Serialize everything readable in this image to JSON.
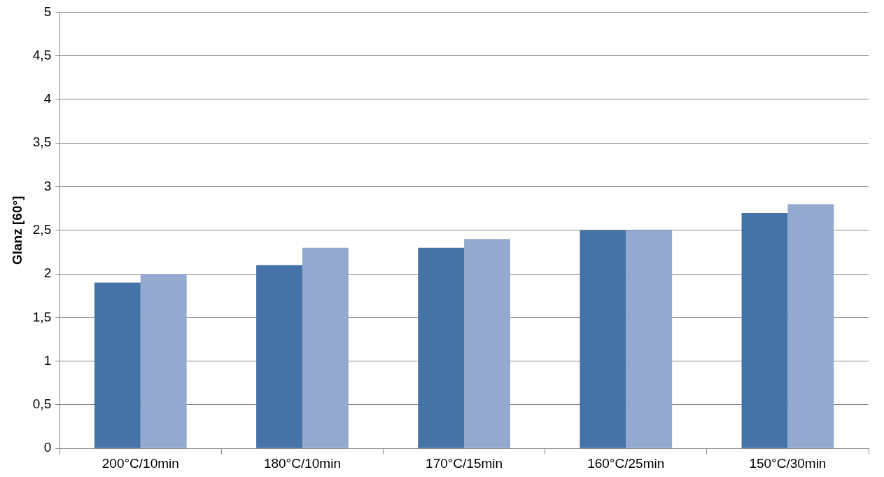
{
  "chart_data": {
    "type": "bar",
    "ylabel": "Glanz [60°]",
    "categories": [
      "200°C/10min",
      "180°C/10min",
      "170°C/15min",
      "160°C/25min",
      "150°C/30min"
    ],
    "series": [
      {
        "color": "#4573a7",
        "values": [
          1.9,
          2.1,
          2.3,
          2.5,
          2.7
        ]
      },
      {
        "color": "#93a9cf",
        "values": [
          2.0,
          2.3,
          2.4,
          2.5,
          2.8
        ]
      }
    ],
    "ylim": [
      0,
      5
    ],
    "yticks": [
      0,
      {
        "value": 0.5,
        "label": "0,5"
      },
      1,
      {
        "value": 1.5,
        "label": "1,5"
      },
      2,
      {
        "value": 2.5,
        "label": "2,5"
      },
      3,
      {
        "value": 3.5,
        "label": "3,5"
      },
      4,
      {
        "value": 4.5,
        "label": "4,5"
      },
      5
    ],
    "grid": "y",
    "legend": false
  }
}
